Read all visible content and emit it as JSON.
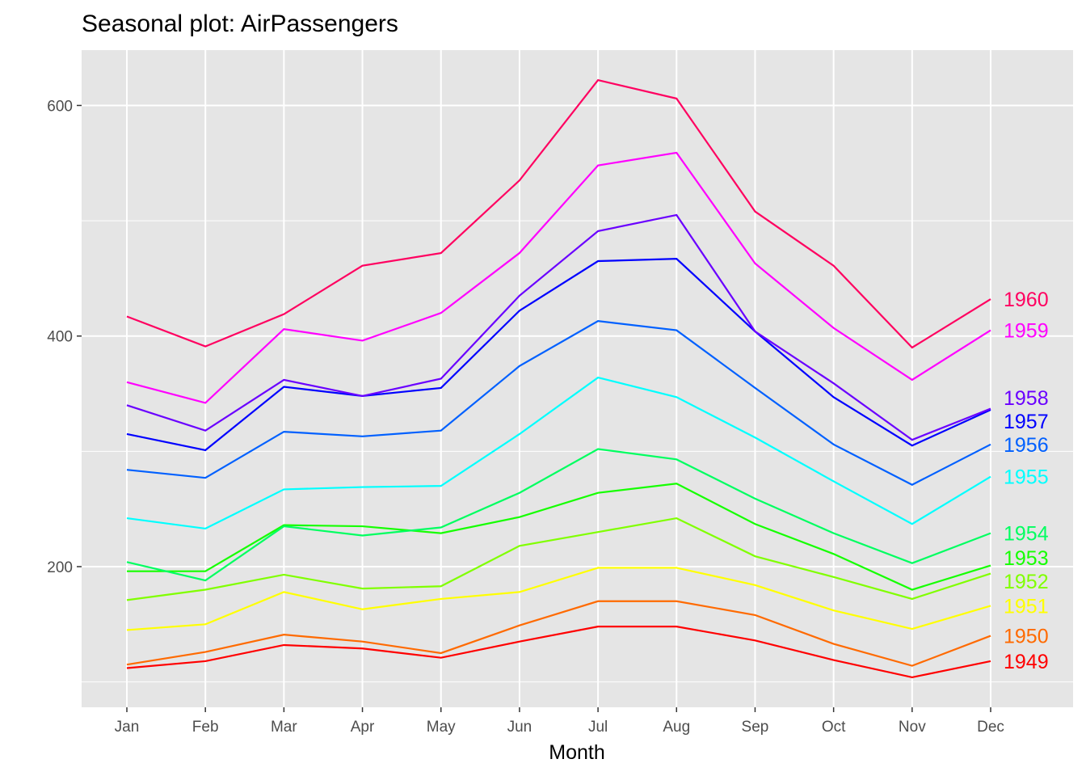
{
  "chart_data": {
    "type": "line",
    "title": "Seasonal plot: AirPassengers",
    "xlabel": "Month",
    "ylabel": "",
    "categories": [
      "Jan",
      "Feb",
      "Mar",
      "Apr",
      "May",
      "Jun",
      "Jul",
      "Aug",
      "Sep",
      "Oct",
      "Nov",
      "Dec"
    ],
    "ylim": [
      78,
      648
    ],
    "yticks": [
      200,
      400,
      600
    ],
    "grid": true,
    "legend": "direct labels at right end of lines",
    "series": [
      {
        "name": "1949",
        "color": "#FF0000",
        "values": [
          112,
          118,
          132,
          129,
          121,
          135,
          148,
          148,
          136,
          119,
          104,
          118
        ]
      },
      {
        "name": "1950",
        "color": "#FF6A00",
        "values": [
          115,
          126,
          141,
          135,
          125,
          149,
          170,
          170,
          158,
          133,
          114,
          140
        ]
      },
      {
        "name": "1951",
        "color": "#FFFF00",
        "values": [
          145,
          150,
          178,
          163,
          172,
          178,
          199,
          199,
          184,
          162,
          146,
          166
        ]
      },
      {
        "name": "1952",
        "color": "#80FF00",
        "values": [
          171,
          180,
          193,
          181,
          183,
          218,
          230,
          242,
          209,
          191,
          172,
          194
        ]
      },
      {
        "name": "1953",
        "color": "#15FF00",
        "values": [
          196,
          196,
          236,
          235,
          229,
          243,
          264,
          272,
          237,
          211,
          180,
          201
        ]
      },
      {
        "name": "1954",
        "color": "#00FF60",
        "values": [
          204,
          188,
          235,
          227,
          234,
          264,
          302,
          293,
          259,
          229,
          203,
          229
        ]
      },
      {
        "name": "1955",
        "color": "#00FFFF",
        "values": [
          242,
          233,
          267,
          269,
          270,
          315,
          364,
          347,
          312,
          274,
          237,
          278
        ]
      },
      {
        "name": "1956",
        "color": "#0060FF",
        "values": [
          284,
          277,
          317,
          313,
          318,
          374,
          413,
          405,
          355,
          306,
          271,
          306
        ]
      },
      {
        "name": "1957",
        "color": "#0000FF",
        "values": [
          315,
          301,
          356,
          348,
          355,
          422,
          465,
          467,
          404,
          347,
          305,
          336
        ]
      },
      {
        "name": "1958",
        "color": "#6A00FF",
        "values": [
          340,
          318,
          362,
          348,
          363,
          435,
          491,
          505,
          404,
          359,
          310,
          337
        ]
      },
      {
        "name": "1959",
        "color": "#FF00FF",
        "values": [
          360,
          342,
          406,
          396,
          420,
          472,
          548,
          559,
          463,
          407,
          362,
          405
        ]
      },
      {
        "name": "1960",
        "color": "#FF0060",
        "values": [
          417,
          391,
          419,
          461,
          472,
          535,
          622,
          606,
          508,
          461,
          390,
          432
        ]
      }
    ]
  }
}
